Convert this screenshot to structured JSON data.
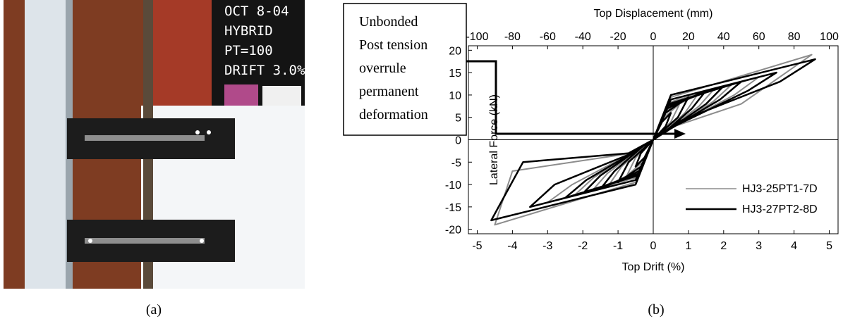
{
  "photo": {
    "labels": [
      "OCT 8-04",
      "HYBRID",
      "PT=100",
      "DRIFT 3.0%"
    ]
  },
  "callout": {
    "lines": [
      "Unbonded",
      "Post tension",
      "overrule",
      "permanent",
      "deformation"
    ]
  },
  "captions": [
    "(a)",
    "(b)"
  ],
  "chart_data": {
    "type": "line",
    "x_label": "Top Drift (%)",
    "x2_label": "Top Displacement (mm)",
    "y_label": "Lateral Force (kN)",
    "xlim": [
      -5.25,
      5.25
    ],
    "xticks": [
      -5,
      -4,
      -3,
      -2,
      -1,
      0,
      1,
      2,
      3,
      4,
      5
    ],
    "x2lim": [
      -105,
      105
    ],
    "x2ticks": [
      -100,
      -80,
      -60,
      -40,
      -20,
      0,
      20,
      40,
      60,
      80,
      100
    ],
    "ylim": [
      -21,
      21
    ],
    "yticks": [
      -20,
      -15,
      -10,
      -5,
      0,
      5,
      10,
      15,
      20
    ],
    "legend": "lower right",
    "series": [
      {
        "name": "HJ3-25PT1-7D",
        "color": "#8c8c8c",
        "x": [
          0,
          0.3,
          0.75,
          0.5,
          0,
          -0.3,
          -0.75,
          -0.5,
          0,
          null,
          0,
          0.35,
          1.25,
          0.9,
          0.2,
          0,
          -0.35,
          -1.25,
          -0.9,
          -0.2,
          0,
          null,
          0,
          0.4,
          1.75,
          1.3,
          0.3,
          0,
          -0.4,
          -1.75,
          -1.3,
          -0.3,
          0,
          null,
          0,
          0.45,
          2.25,
          1.7,
          0.4,
          0,
          -0.45,
          -2.25,
          -1.7,
          -0.4,
          0,
          null,
          0,
          0.5,
          3,
          2.3,
          0.5,
          0,
          -0.5,
          -3,
          -2.3,
          -0.5,
          0,
          null,
          0,
          0.5,
          4.5,
          2.5,
          0.6,
          0,
          -0.5,
          -4.5,
          -4,
          -0.6,
          0
        ],
        "values": [
          0,
          5,
          8,
          4,
          0,
          -5,
          -8,
          -4,
          0,
          null,
          0,
          6.5,
          10,
          6,
          1,
          0,
          -6.5,
          -10,
          -6,
          -1,
          0,
          null,
          0,
          7.5,
          11.5,
          7.5,
          1.5,
          0,
          -7.5,
          -11.5,
          -7.5,
          -1.5,
          0,
          null,
          0,
          8,
          12.5,
          8.5,
          2,
          0,
          -8,
          -12.5,
          -8.5,
          -2,
          0,
          null,
          0,
          8.5,
          14,
          10,
          2.5,
          0,
          -8.5,
          -14,
          -10,
          -2.5,
          0,
          null,
          0,
          9.5,
          19,
          8,
          3,
          0,
          -9.5,
          -19,
          -7,
          -3,
          0
        ]
      },
      {
        "name": "HJ3-27PT2-8D",
        "color": "#000000",
        "x": [
          0,
          0.25,
          0.5,
          0.35,
          0,
          -0.25,
          -0.5,
          -0.35,
          0,
          null,
          0,
          0.35,
          1,
          0.7,
          0,
          -0.35,
          -1,
          -0.7,
          0,
          null,
          0,
          0.4,
          1.5,
          1.1,
          0.3,
          0,
          -0.4,
          -1.5,
          -1.1,
          -0.3,
          0,
          null,
          0,
          0.4,
          2,
          1.5,
          0.4,
          0,
          -0.4,
          -2,
          -1.5,
          -0.4,
          0,
          null,
          0,
          0.45,
          2.5,
          1.9,
          0.5,
          0,
          -0.45,
          -2.5,
          -1.9,
          -0.5,
          0,
          null,
          0,
          0.5,
          3.5,
          2.7,
          0.6,
          0,
          -0.5,
          -3.5,
          -2.8,
          -0.6,
          0,
          null,
          0,
          0.5,
          4.6,
          3.6,
          0.7,
          0,
          -0.5,
          -4.6,
          -3.7,
          -0.7,
          0
        ],
        "values": [
          0,
          4,
          6,
          3,
          0,
          -4,
          -6,
          -3,
          0,
          null,
          0,
          6,
          9.5,
          5,
          0,
          -6,
          -9.5,
          -5,
          0,
          null,
          0,
          7,
          11,
          7,
          1.5,
          0,
          -7,
          -11,
          -7,
          -1.5,
          0,
          null,
          0,
          7.5,
          12,
          8,
          2,
          0,
          -7.5,
          -12,
          -8,
          -2,
          0,
          null,
          0,
          8,
          13,
          9,
          2.5,
          0,
          -8,
          -13,
          -9,
          -2.5,
          0,
          null,
          0,
          9,
          15,
          11,
          3,
          0,
          -9,
          -15,
          -10,
          -3,
          0,
          null,
          0,
          10,
          18,
          13,
          4,
          0,
          -10,
          -18,
          -5,
          -3,
          0
        ]
      }
    ]
  }
}
